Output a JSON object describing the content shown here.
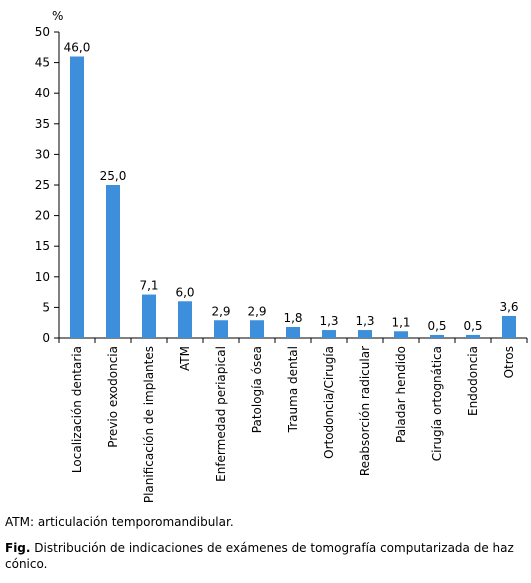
{
  "chart_data": {
    "type": "bar",
    "unit_label": "%",
    "categories": [
      "Localización dentaria",
      "Previo exodoncia",
      "Planificación de implantes",
      "ATM",
      "Enfermedad periapical",
      "Patología ósea",
      "Trauma dental",
      "Ortodoncia/Cirugía",
      "Reabsorción radicular",
      "Paladar hendido",
      "Cirugía ortognática",
      "Endodoncia",
      "Otros"
    ],
    "values": [
      46.0,
      25.0,
      7.1,
      6.0,
      2.9,
      2.9,
      1.8,
      1.3,
      1.3,
      1.1,
      0.5,
      0.5,
      3.6
    ],
    "value_labels": [
      "46,0",
      "25,0",
      "7,1",
      "6,0",
      "2,9",
      "2,9",
      "1,8",
      "1,3",
      "1,3",
      "1,1",
      "0,5",
      "0,5",
      "3,6"
    ],
    "ylim": [
      0,
      50
    ],
    "yticks": [
      0,
      5,
      10,
      15,
      20,
      25,
      30,
      35,
      40,
      45,
      50
    ],
    "bar_color": "#3d8fdc",
    "grid": false
  },
  "footnote": "ATM: articulación temporomandibular.",
  "caption": {
    "prefix": "Fig.",
    "text": "Distribución de indicaciones de exámenes de tomografía computarizada de haz cónico."
  }
}
